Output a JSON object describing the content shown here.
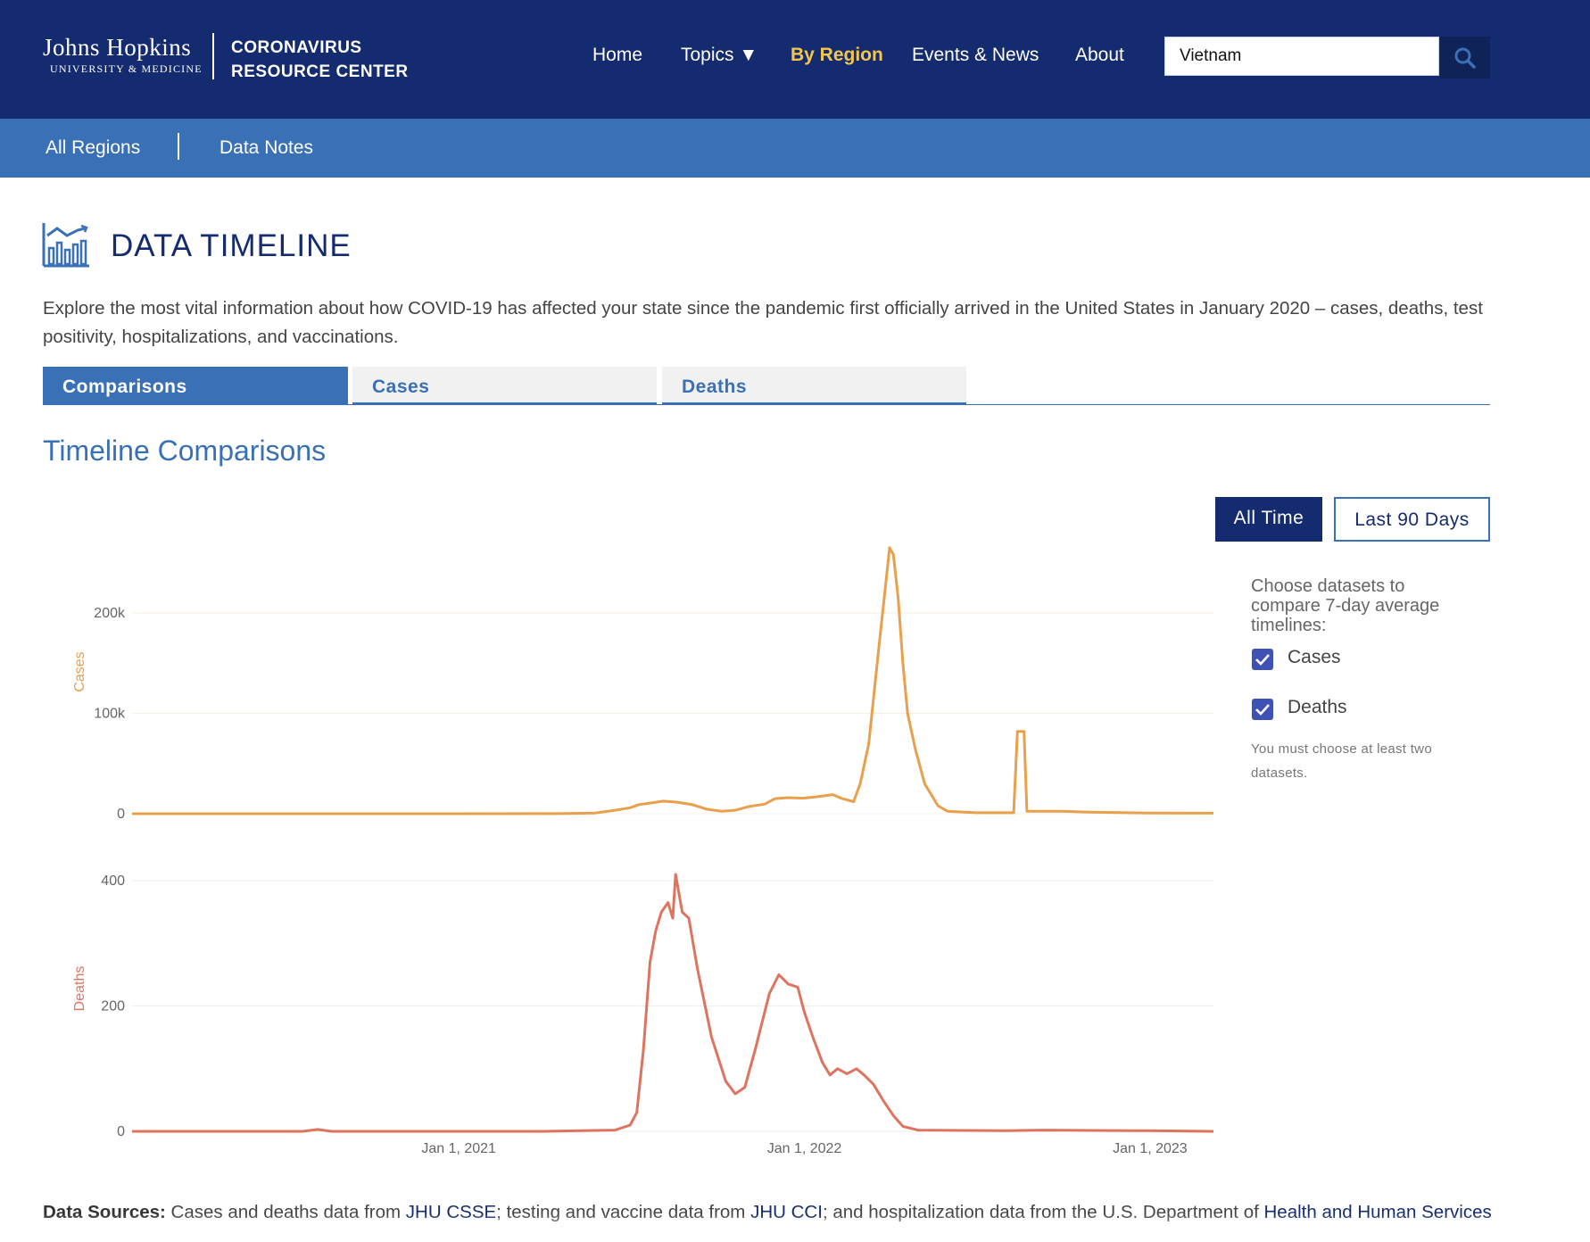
{
  "header": {
    "logo_line1": "Johns Hopkins",
    "logo_line2": "UNIVERSITY & MEDICINE",
    "crc_line1": "CORONAVIRUS",
    "crc_line2": "RESOURCE CENTER",
    "nav": [
      {
        "label": "Home",
        "active": false
      },
      {
        "label": "Topics ▼",
        "active": false
      },
      {
        "label": "By Region",
        "active": true
      },
      {
        "label": "Events & News",
        "active": false
      },
      {
        "label": "About",
        "active": false
      }
    ],
    "search": {
      "value": "Vietnam",
      "icon": "search-icon"
    }
  },
  "subnav": {
    "items": [
      "All Regions",
      "Data Notes"
    ]
  },
  "page": {
    "icon": "chart-timeline-icon",
    "title": "DATA TIMELINE",
    "intro": "Explore the most vital information about how COVID-19 has affected your state since the pandemic first officially arrived in the United States in January 2020 – cases, deaths, test positivity, hospitalizations, and vaccinations."
  },
  "tabs": [
    {
      "label": "Comparisons",
      "active": true
    },
    {
      "label": "Cases",
      "active": false
    },
    {
      "label": "Deaths",
      "active": false
    }
  ],
  "section_title": "Timeline Comparisons",
  "range_buttons": {
    "all_time": "All Time",
    "last_90": "Last 90 Days",
    "selected": "All Time"
  },
  "panel": {
    "prompt": "Choose datasets to compare 7-day average timelines:",
    "options": [
      {
        "label": "Cases",
        "checked": true
      },
      {
        "label": "Deaths",
        "checked": true
      }
    ],
    "note": "You must choose at least two datasets."
  },
  "colors": {
    "cases": "#e8a04c",
    "deaths": "#de7460",
    "navy": "#142b6f",
    "blue": "#3a70b5",
    "accent": "#f4c74a"
  },
  "chart_data": {
    "type": "line",
    "x_axis": {
      "type": "date",
      "ticks": [
        "Jan 1, 2021",
        "Jan 1, 2022",
        "Jan 1, 2023"
      ]
    },
    "panels": [
      {
        "name": "Cases",
        "ylabel": "Cases",
        "y_ticks": [
          "0",
          "100k",
          "200k"
        ],
        "ylim": [
          0,
          270000
        ],
        "points": [
          [
            "2020-01-22",
            0
          ],
          [
            "2020-07-01",
            0
          ],
          [
            "2020-12-31",
            0
          ],
          [
            "2021-04-15",
            100
          ],
          [
            "2021-05-25",
            700
          ],
          [
            "2021-06-15",
            3500
          ],
          [
            "2021-07-01",
            6000
          ],
          [
            "2021-07-10",
            9000
          ],
          [
            "2021-07-25",
            11000
          ],
          [
            "2021-08-05",
            12500
          ],
          [
            "2021-08-20",
            11500
          ],
          [
            "2021-09-05",
            9000
          ],
          [
            "2021-09-20",
            4500
          ],
          [
            "2021-10-05",
            2500
          ],
          [
            "2021-10-20",
            3500
          ],
          [
            "2021-11-05",
            7500
          ],
          [
            "2021-11-20",
            9500
          ],
          [
            "2021-12-01",
            15000
          ],
          [
            "2021-12-15",
            16000
          ],
          [
            "2021-12-31",
            15500
          ],
          [
            "2022-01-15",
            17000
          ],
          [
            "2022-01-31",
            19000
          ],
          [
            "2022-02-10",
            15000
          ],
          [
            "2022-02-22",
            12000
          ],
          [
            "2022-03-01",
            30000
          ],
          [
            "2022-03-10",
            70000
          ],
          [
            "2022-03-20",
            160000
          ],
          [
            "2022-03-28",
            230000
          ],
          [
            "2022-04-01",
            265000
          ],
          [
            "2022-04-05",
            258000
          ],
          [
            "2022-04-10",
            215000
          ],
          [
            "2022-04-15",
            150000
          ],
          [
            "2022-04-20",
            100000
          ],
          [
            "2022-04-28",
            65000
          ],
          [
            "2022-05-08",
            30000
          ],
          [
            "2022-05-22",
            8000
          ],
          [
            "2022-06-01",
            2500
          ],
          [
            "2022-07-01",
            1000
          ],
          [
            "2022-08-10",
            1000
          ],
          [
            "2022-08-14",
            82000
          ],
          [
            "2022-08-21",
            82000
          ],
          [
            "2022-08-24",
            2500
          ],
          [
            "2022-09-30",
            2500
          ],
          [
            "2022-10-30",
            1500
          ],
          [
            "2022-12-31",
            700
          ],
          [
            "2023-03-09",
            500
          ]
        ]
      },
      {
        "name": "Deaths",
        "ylabel": "Deaths",
        "y_ticks": [
          "0",
          "200",
          "400"
        ],
        "ylim": [
          0,
          430
        ],
        "points": [
          [
            "2020-01-22",
            0
          ],
          [
            "2020-07-20",
            0
          ],
          [
            "2020-08-05",
            3
          ],
          [
            "2020-08-20",
            0
          ],
          [
            "2021-04-01",
            0
          ],
          [
            "2021-06-15",
            2
          ],
          [
            "2021-07-01",
            10
          ],
          [
            "2021-07-08",
            30
          ],
          [
            "2021-07-15",
            130
          ],
          [
            "2021-07-22",
            270
          ],
          [
            "2021-07-28",
            320
          ],
          [
            "2021-08-03",
            350
          ],
          [
            "2021-08-10",
            365
          ],
          [
            "2021-08-15",
            340
          ],
          [
            "2021-08-18",
            410
          ],
          [
            "2021-08-25",
            350
          ],
          [
            "2021-09-01",
            340
          ],
          [
            "2021-09-10",
            260
          ],
          [
            "2021-09-25",
            150
          ],
          [
            "2021-10-10",
            80
          ],
          [
            "2021-10-20",
            60
          ],
          [
            "2021-10-30",
            70
          ],
          [
            "2021-11-10",
            130
          ],
          [
            "2021-11-25",
            220
          ],
          [
            "2021-12-05",
            250
          ],
          [
            "2021-12-15",
            235
          ],
          [
            "2021-12-25",
            230
          ],
          [
            "2022-01-01",
            190
          ],
          [
            "2022-01-10",
            150
          ],
          [
            "2022-01-20",
            110
          ],
          [
            "2022-01-28",
            90
          ],
          [
            "2022-02-05",
            100
          ],
          [
            "2022-02-15",
            92
          ],
          [
            "2022-02-25",
            100
          ],
          [
            "2022-03-05",
            90
          ],
          [
            "2022-03-15",
            75
          ],
          [
            "2022-03-25",
            50
          ],
          [
            "2022-04-05",
            25
          ],
          [
            "2022-04-15",
            8
          ],
          [
            "2022-05-01",
            2
          ],
          [
            "2022-08-01",
            1
          ],
          [
            "2022-09-10",
            2
          ],
          [
            "2022-12-31",
            1
          ],
          [
            "2023-03-09",
            0
          ]
        ]
      }
    ]
  },
  "footer": {
    "label": "Data Sources:",
    "t1": " Cases and deaths data from ",
    "link1": "JHU CSSE",
    "t2": "; testing and vaccine data from ",
    "link2": "JHU CCI",
    "t3": "; and hospitalization data from the U.S. Department of ",
    "link3": "Health and Human Services"
  }
}
